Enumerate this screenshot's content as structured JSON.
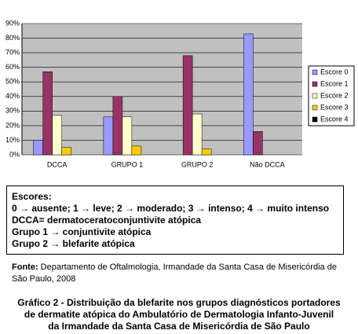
{
  "chart_data": {
    "type": "bar",
    "categories": [
      "DCCA",
      "GRUPO 1",
      "GRUPO 2",
      "Não DCCA"
    ],
    "series": [
      {
        "name": "Escore 0",
        "color": "#9999ff",
        "values": [
          10,
          26,
          0,
          83
        ]
      },
      {
        "name": "Escore 1",
        "color": "#993366",
        "values": [
          57,
          40,
          68,
          16
        ]
      },
      {
        "name": "Escore 2",
        "color": "#ffffcc",
        "values": [
          27,
          26,
          28,
          0
        ]
      },
      {
        "name": "Escore 3",
        "color": "#ffcc00",
        "values": [
          5,
          6,
          4,
          0
        ]
      },
      {
        "name": "Escore 4",
        "color": "#000000",
        "values": [
          0,
          0,
          0,
          0
        ]
      }
    ],
    "ylim": [
      0,
      90
    ],
    "yticks": [
      {
        "value": 0,
        "label": "0%"
      },
      {
        "value": 10,
        "label": "10%"
      },
      {
        "value": 20,
        "label": "20%"
      },
      {
        "value": 30,
        "label": "30%"
      },
      {
        "value": 40,
        "label": "40%"
      },
      {
        "value": 50,
        "label": "50%"
      },
      {
        "value": 60,
        "label": "60%"
      },
      {
        "value": 70,
        "label": "70%"
      },
      {
        "value": 80,
        "label": "80%"
      },
      {
        "value": 90,
        "label": "90%"
      }
    ],
    "grid": true,
    "legend": "right"
  },
  "notes": {
    "heading": "Escores:",
    "lines": [
      "0 → ausente; 1 → leve; 2 → moderado; 3 → intenso; 4 → muito intenso",
      "DCCA= dermatoceratoconjuntivite atópica",
      "Grupo 1 → conjuntivite atópica",
      "Grupo 2 → blefarite atópica"
    ]
  },
  "source": {
    "label": "Fonte:",
    "text": "Departamento de Oftalmologia, Irmandade da Santa Casa de Misericórdia de São Paulo, 2008"
  },
  "caption": [
    "Gráfico 2 - Distribuição da blefarite nos grupos diagnósticos portadores",
    "de dermatite atópica do Ambulatório de Dermatologia Infanto-Juvenil",
    "da Irmandade da Santa Casa de Misericórdia de São Paulo"
  ]
}
